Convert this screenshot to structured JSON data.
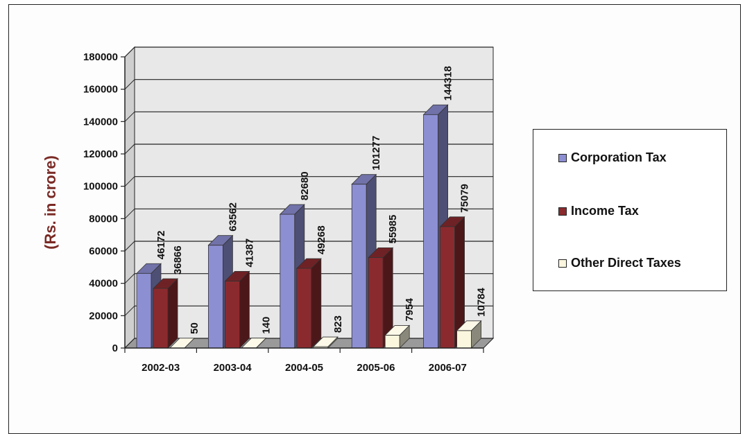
{
  "chart_data": {
    "type": "bar",
    "categories": [
      "2002-03",
      "2003-04",
      "2004-05",
      "2005-06",
      "2006-07"
    ],
    "series": [
      {
        "name": "Corporation Tax",
        "values": [
          46172,
          63562,
          82680,
          101277,
          144318
        ],
        "color": "#8d8fd3"
      },
      {
        "name": "Income Tax",
        "values": [
          36866,
          41387,
          49268,
          55985,
          75079
        ],
        "color": "#8b2a2e"
      },
      {
        "name": "Other Direct Taxes",
        "values": [
          50,
          140,
          823,
          7954,
          10784
        ],
        "color": "#fbf7de"
      }
    ],
    "data_labels": [
      [
        "46172",
        "63562",
        "82680",
        "101277",
        "144318"
      ],
      [
        "36866",
        "41387",
        "49268",
        "55985",
        "75079"
      ],
      [
        "50",
        "140",
        "823",
        "7954",
        "10784"
      ]
    ],
    "ylabel": "(Rs. in crore)",
    "yticks": [
      "0",
      "20000",
      "40000",
      "60000",
      "80000",
      "100000",
      "120000",
      "140000",
      "160000",
      "180000"
    ],
    "ylim": [
      0,
      180000
    ],
    "grid": true,
    "legend_position": "right"
  }
}
